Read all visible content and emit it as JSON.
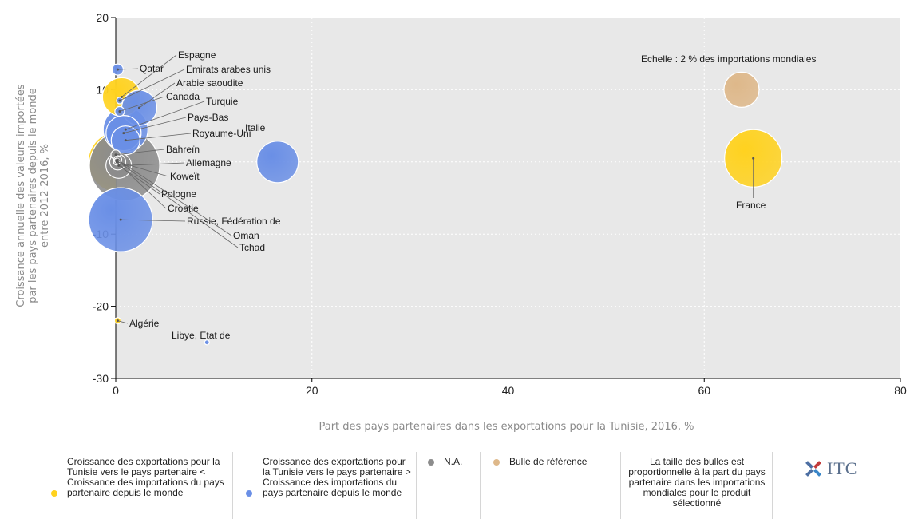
{
  "chart_data": {
    "type": "scatter",
    "subtype": "bubble",
    "xlabel": "Part des pays partenaires dans les exportations pour la Tunisie, 2016, %",
    "ylabel_lines": [
      "Croissance annuelle des valeurs importées",
      "par les pays partenaires depuis le monde",
      "entre 2012-2016, %"
    ],
    "xlim": [
      0,
      80
    ],
    "ylim": [
      -30,
      20
    ],
    "xticks": [
      0,
      20,
      40,
      60,
      80
    ],
    "yticks": [
      -30,
      -20,
      -10,
      0,
      10,
      20
    ],
    "grid": true,
    "scale_note": "Echelle : 2 % des importations mondiales",
    "colors": {
      "yellow": "#ffd21f",
      "blue": "#6a8fe6",
      "gray": "#8c8c8c",
      "reference": "#deb88a",
      "plot_bg": "#e8e8e8"
    },
    "points": [
      {
        "name": "France",
        "x": 65.0,
        "y": 0.5,
        "r": 36,
        "color": "yellow"
      },
      {
        "name": "Italie",
        "x": 16.5,
        "y": 0.0,
        "r": 26,
        "color": "blue"
      },
      {
        "name": "Allemagne",
        "x": 0.9,
        "y": -0.5,
        "r": 44,
        "color": "gray"
      },
      {
        "name": "Espagne",
        "x": 0.6,
        "y": 9.0,
        "r": 24,
        "color": "yellow"
      },
      {
        "name": "Qatar",
        "x": 0.2,
        "y": 12.8,
        "r": 7,
        "color": "blue"
      },
      {
        "name": "Emirats arabes unis",
        "x": 0.4,
        "y": 8.5,
        "r": 4,
        "color": "blue"
      },
      {
        "name": "Arabie saoudite",
        "x": 2.4,
        "y": 7.5,
        "r": 22,
        "color": "blue"
      },
      {
        "name": "Canada",
        "x": 0.4,
        "y": 7.0,
        "r": 6,
        "color": "blue"
      },
      {
        "name": "Turquie",
        "x": 1.0,
        "y": 4.5,
        "r": 28,
        "color": "blue"
      },
      {
        "name": "Pays-Bas",
        "x": 0.8,
        "y": 4.0,
        "r": 22,
        "color": "blue"
      },
      {
        "name": "Royaume-Uni",
        "x": 1.0,
        "y": 3.0,
        "r": 18,
        "color": "blue"
      },
      {
        "name": "Bahreïn",
        "x": 0.0,
        "y": 1.0,
        "r": 6,
        "color": "gray"
      },
      {
        "name": "Koweït",
        "x": 0.2,
        "y": 0.0,
        "r": 10,
        "color": "gray"
      },
      {
        "name": "Pologne",
        "x": 0.3,
        "y": -0.5,
        "r": 16,
        "color": "gray"
      },
      {
        "name": "Croatie",
        "x": 0.1,
        "y": 0.0,
        "r": 4,
        "color": "gray"
      },
      {
        "name": "Russie, Fédération de",
        "x": 0.5,
        "y": -8.0,
        "r": 40,
        "color": "blue"
      },
      {
        "name": "Oman",
        "x": 0.2,
        "y": 0.3,
        "r": 5,
        "color": "gray"
      },
      {
        "name": "Tchad",
        "x": 0.1,
        "y": 0.2,
        "r": 3,
        "color": "gray"
      },
      {
        "name": "Algérie",
        "x": 0.2,
        "y": -22.0,
        "r": 4,
        "color": "yellow"
      },
      {
        "name": "Libye, Etat de",
        "x": 9.3,
        "y": -25.0,
        "r": 3,
        "color": "blue"
      },
      {
        "name": "Tunisie-left-yellow",
        "x": -1.0,
        "y": 0.0,
        "r": 0,
        "color": "yellow",
        "hidden": true
      }
    ],
    "reference_bubble": {
      "x": 63.8,
      "y": 10.0,
      "r": 22,
      "color": "reference"
    }
  },
  "legend": {
    "items": [
      {
        "text": "Croissance des exportations pour la Tunisie vers le pays partenaire < Croissance des importations du pays partenaire depuis le monde",
        "color": "#ffd21f"
      },
      {
        "text": "Croissance des exportations pour la Tunisie vers le pays partenaire > Croissance des importations du pays partenaire depuis le monde",
        "color": "#6a8fe6"
      },
      {
        "text": "N.A.",
        "color": "#8c8c8c"
      },
      {
        "text": "Bulle de référence",
        "color": "#deb88a"
      },
      {
        "text": "La taille des bulles est proportionnelle à la part du pays partenaire dans les importations mondiales pour le produit sélectionné",
        "color": ""
      }
    ],
    "logo_text": "ITC"
  }
}
